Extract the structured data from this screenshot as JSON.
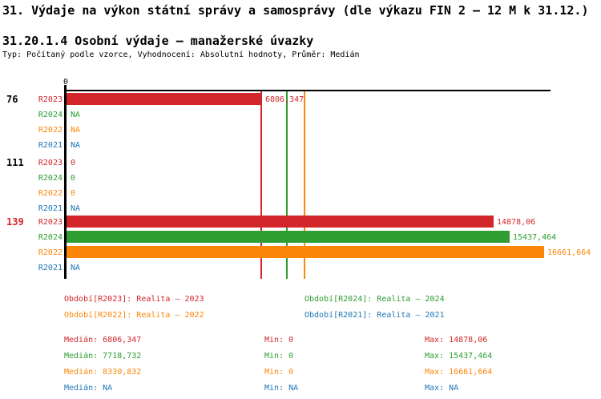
{
  "header": {
    "title": "31. Výdaje na výkon státní správy a samosprávy (dle výkazu FIN 2 – 12 M k 31.12.)",
    "subtitle": "31.20.1.4 Osobní výdaje – manažerské úvazky",
    "meta": "Typ: Počítaný podle vzorce, Vyhodnocení: Absolutní hodnoty, Průměr: Medián"
  },
  "colors": {
    "r2023": "#d2262b",
    "r2024": "#2e9e32",
    "r2022": "#fc8608",
    "r2021": "#2077b4",
    "axis": "#000000",
    "group_id_default": "#000000",
    "group_id_highlight": "#d2262b"
  },
  "chart_data": {
    "type": "bar",
    "orientation": "horizontal",
    "x_axis": {
      "tick_label": "0",
      "min": 0
    },
    "series": [
      "R2023",
      "R2024",
      "R2022",
      "R2021"
    ],
    "groups": [
      {
        "id": "76",
        "id_highlighted": false,
        "rows": [
          {
            "series": "R2023",
            "color_key": "r2023",
            "value": 6806.347,
            "display": "6806,347"
          },
          {
            "series": "R2024",
            "color_key": "r2024",
            "value": null,
            "display": "NA"
          },
          {
            "series": "R2022",
            "color_key": "r2022",
            "value": null,
            "display": "NA"
          },
          {
            "series": "R2021",
            "color_key": "r2021",
            "value": null,
            "display": "NA"
          }
        ]
      },
      {
        "id": "111",
        "id_highlighted": false,
        "rows": [
          {
            "series": "R2023",
            "color_key": "r2023",
            "value": 0,
            "display": "0"
          },
          {
            "series": "R2024",
            "color_key": "r2024",
            "value": 0,
            "display": "0"
          },
          {
            "series": "R2022",
            "color_key": "r2022",
            "value": 0,
            "display": "0"
          },
          {
            "series": "R2021",
            "color_key": "r2021",
            "value": null,
            "display": "NA"
          }
        ]
      },
      {
        "id": "139",
        "id_highlighted": true,
        "rows": [
          {
            "series": "R2023",
            "color_key": "r2023",
            "value": 14878.06,
            "display": "14878,06"
          },
          {
            "series": "R2024",
            "color_key": "r2024",
            "value": 15437.464,
            "display": "15437,464"
          },
          {
            "series": "R2022",
            "color_key": "r2022",
            "value": 16661.664,
            "display": "16661,664"
          },
          {
            "series": "R2021",
            "color_key": "r2021",
            "value": null,
            "display": "NA"
          }
        ]
      }
    ],
    "median_lines": [
      {
        "color_key": "r2023",
        "value": 6806.347
      },
      {
        "color_key": "r2024",
        "value": 7718.732
      },
      {
        "color_key": "r2022",
        "value": 8330.832
      }
    ]
  },
  "legend": {
    "items": [
      {
        "text": "Období[R2023]: Realita – 2023",
        "color_key": "r2023"
      },
      {
        "text": "Období[R2024]: Realita – 2024",
        "color_key": "r2024"
      },
      {
        "text": "Období[R2022]: Realita – 2022",
        "color_key": "r2022"
      },
      {
        "text": "Období[R2021]: Realita – 2021",
        "color_key": "r2021"
      }
    ]
  },
  "stats": {
    "rows": [
      {
        "color_key": "r2023",
        "median": "Medián: 6806,347",
        "min": "Min: 0",
        "max": "Max: 14878,06"
      },
      {
        "color_key": "r2024",
        "median": "Medián: 7718,732",
        "min": "Min: 0",
        "max": "Max: 15437,464"
      },
      {
        "color_key": "r2022",
        "median": "Medián: 8330,832",
        "min": "Min: 0",
        "max": "Max: 16661,664"
      },
      {
        "color_key": "r2021",
        "median": "Medián: NA",
        "min": "Min: NA",
        "max": "Max: NA"
      }
    ]
  }
}
